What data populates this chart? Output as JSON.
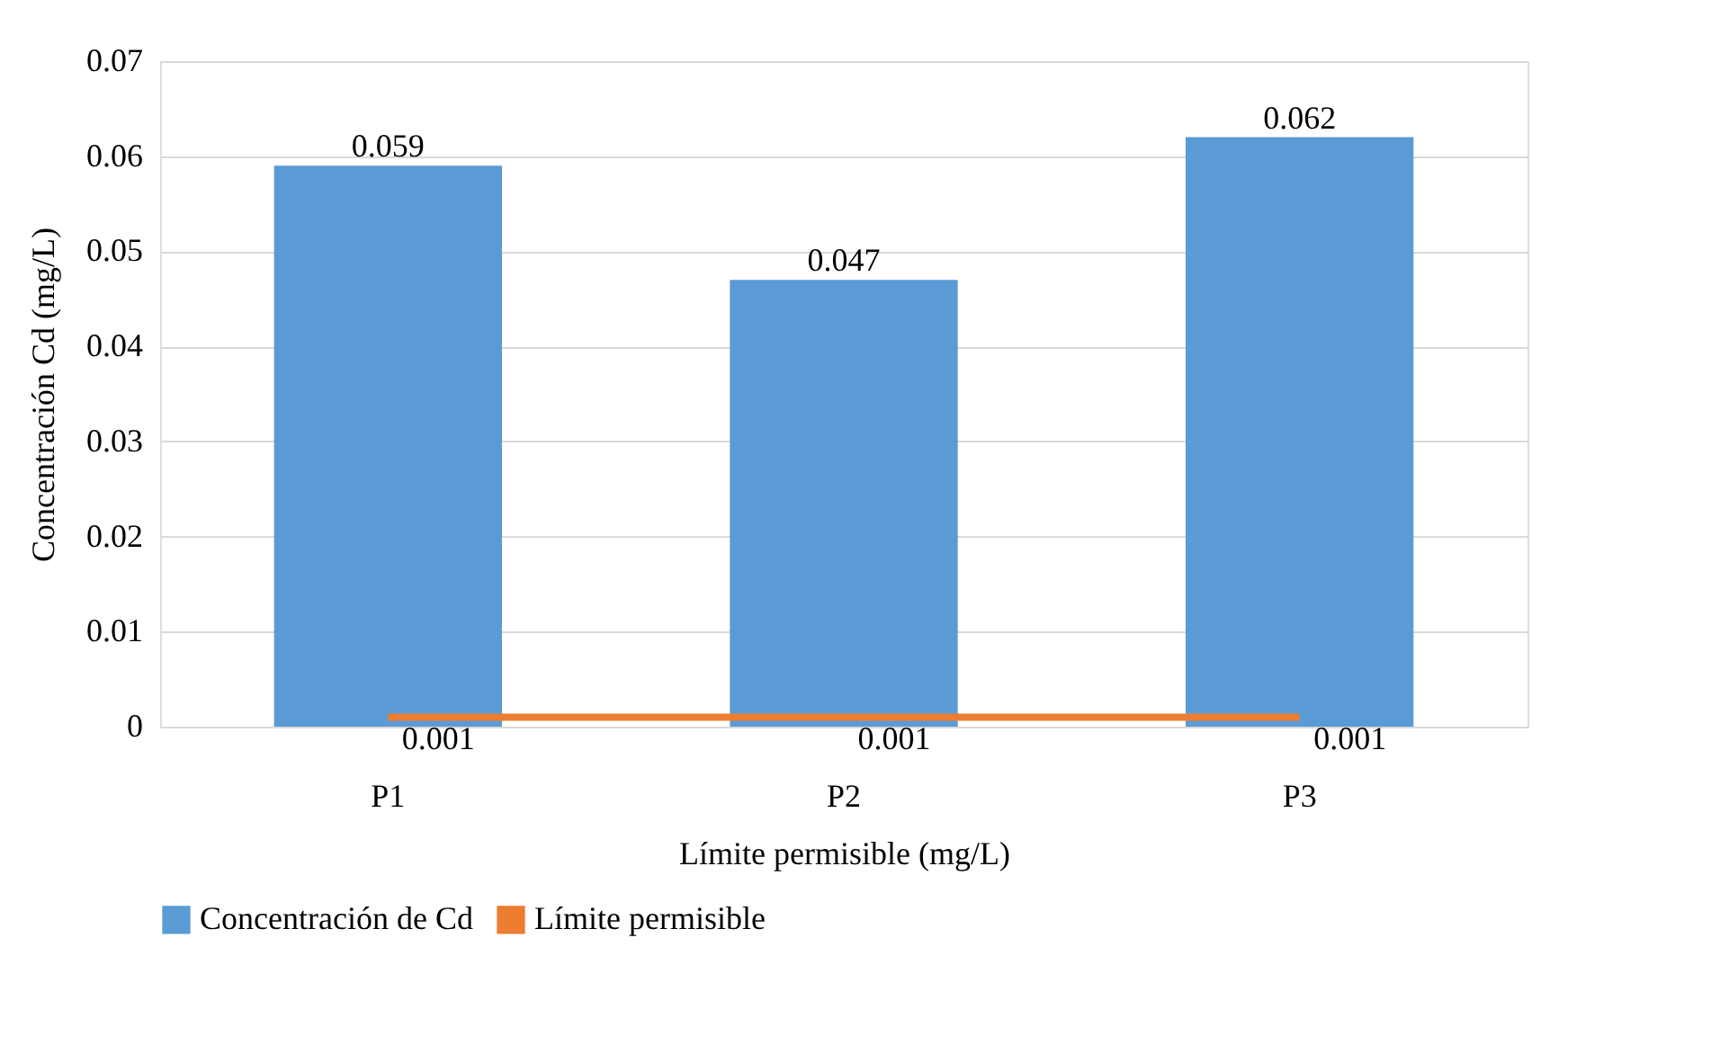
{
  "chart_data": {
    "type": "bar",
    "xlabel": "Límite permisible (mg/L)",
    "ylabel": "Concentración Cd (mg/L)",
    "categories": [
      "P1",
      "P2",
      "P3"
    ],
    "series": [
      {
        "name": "Concentración de Cd",
        "color": "#5b9bd5",
        "values": [
          0.059,
          0.047,
          0.062
        ]
      },
      {
        "name": "Límite permisible",
        "type": "line",
        "color": "#ed7d31",
        "values": [
          0.001,
          0.001,
          0.001
        ]
      }
    ],
    "ylim": [
      0,
      0.07
    ],
    "yticks": [
      0,
      0.01,
      0.02,
      0.03,
      0.04,
      0.05,
      0.06,
      0.07
    ],
    "grid": "y",
    "legend": "bottom",
    "data_labels": true,
    "marker": "none",
    "line_style": "solid"
  }
}
